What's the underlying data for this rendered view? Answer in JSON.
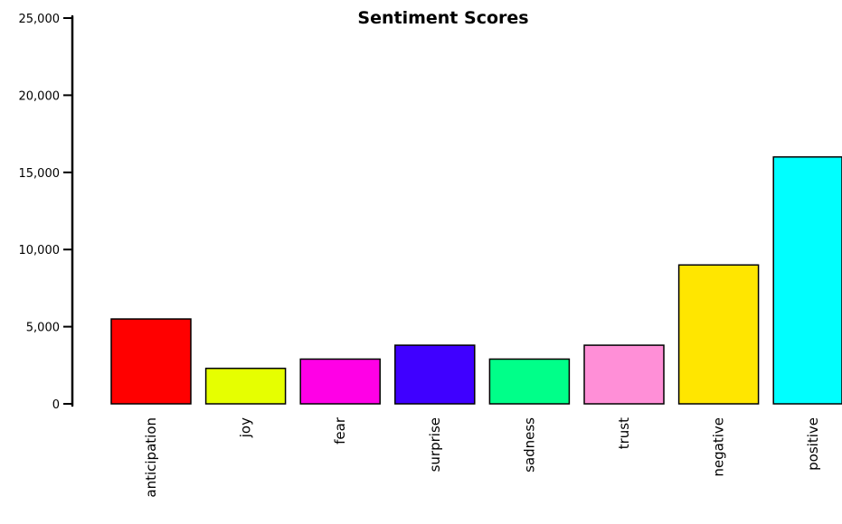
{
  "chart_data": {
    "type": "bar",
    "title": "Sentiment Scores",
    "xlabel": "",
    "ylabel": "",
    "categories": [
      "anticipation",
      "joy",
      "fear",
      "surprise",
      "sadness",
      "trust",
      "negative",
      "positive"
    ],
    "values": [
      5500,
      2300,
      2900,
      3800,
      2900,
      3800,
      9000,
      16000
    ],
    "colors": [
      "#ff0000",
      "#e6ff00",
      "#ff00e6",
      "#3f00ff",
      "#00ff89",
      "#ff8fd7",
      "#ffe600",
      "#00ffff"
    ],
    "yticks": [
      0,
      5000,
      10000,
      15000,
      20000,
      25000
    ],
    "ytick_labels": [
      "0",
      "5,000",
      "10,000",
      "15,000",
      "20,000",
      "25,000"
    ],
    "ylim": [
      0,
      25000
    ],
    "grid": false,
    "legend": "none"
  }
}
